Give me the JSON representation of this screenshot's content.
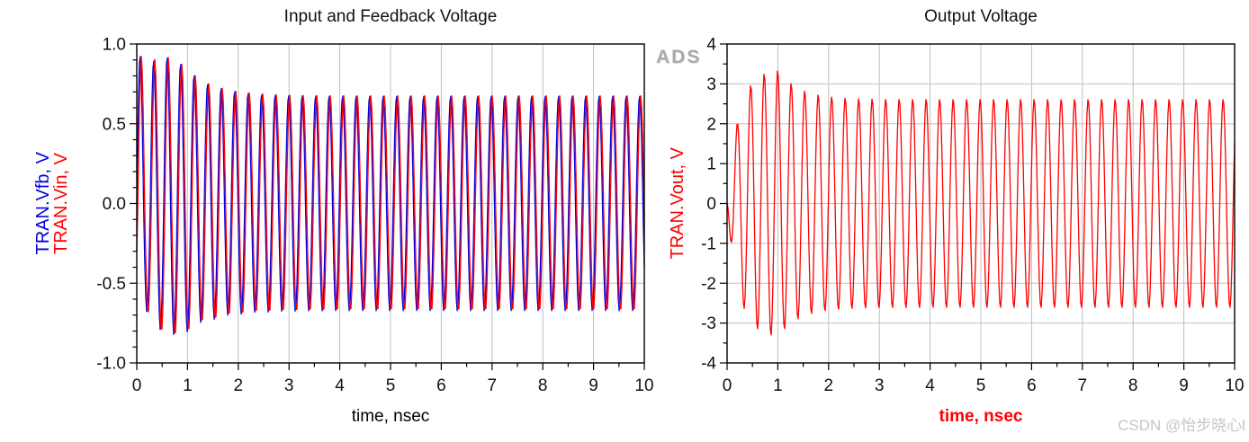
{
  "watermarks": {
    "ads": "ADS",
    "csdn": "CSDN @怡步晓心l"
  },
  "chart_data": [
    {
      "type": "line",
      "title": "Input and Feedback Voltage",
      "xlabel": "time, nsec",
      "xlabel_color": "#000000",
      "ylabels": [
        {
          "text": "TRAN.Vfb, V",
          "color": "#0000e0"
        },
        {
          "text": "TRAN.Vin, V",
          "color": "#ff0000"
        }
      ],
      "xlim": [
        0,
        10
      ],
      "ylim": [
        -1,
        1
      ],
      "xticks": [
        0,
        1,
        2,
        3,
        4,
        5,
        6,
        7,
        8,
        9,
        10
      ],
      "xtick_labels": [
        "0",
        "1",
        "2",
        "3",
        "4",
        "5",
        "6",
        "7",
        "8",
        "9",
        "10"
      ],
      "yticks": [
        -1,
        -0.5,
        0,
        0.5,
        1
      ],
      "ytick_labels": [
        "-1.0",
        "-0.5",
        "0.0",
        "0.5",
        "1.0"
      ],
      "x_minor_step": 0.5,
      "y_minor_step": 0.1,
      "grid": true,
      "grid_color": "#c0c0c0",
      "description": "Two nearly overlapping decaying startup sinusoids; amplitude ~0.9 V settling to ~0.67 V after ~2.5 ns, ~3.76 cycles per ns",
      "series": [
        {
          "name": "TRAN.Vfb",
          "color": "#0000e0",
          "signal": {
            "freq_ghz": 3.76,
            "delay": 0,
            "base": 0.675,
            "overshoot": 0.235,
            "decay_start": 0.8,
            "decay_tau": 0.55,
            "wobble": {
              "amp": 0.03,
              "period": 0.52,
              "decay": 1.0
            },
            "neg_suppress": {
              "coef": 0.35,
              "tau": 0.5
            }
          }
        },
        {
          "name": "TRAN.Vin",
          "color": "#ff0000",
          "signal": {
            "freq_ghz": 3.76,
            "delay": 0.022,
            "base": 0.675,
            "overshoot": 0.235,
            "decay_start": 0.8,
            "decay_tau": 0.55,
            "wobble": {
              "amp": 0.03,
              "period": 0.52,
              "decay": 1.0
            },
            "neg_suppress": {
              "coef": 0.35,
              "tau": 0.5
            }
          }
        }
      ]
    },
    {
      "type": "line",
      "title": "Output Voltage",
      "xlabel": "time, nsec",
      "xlabel_color": "#ff0000",
      "ylabels": [
        {
          "text": "TRAN.Vout, V",
          "color": "#ff0000"
        }
      ],
      "xlim": [
        0,
        10
      ],
      "ylim": [
        -4,
        4
      ],
      "xticks": [
        0,
        1,
        2,
        3,
        4,
        5,
        6,
        7,
        8,
        9,
        10
      ],
      "xtick_labels": [
        "0",
        "1",
        "2",
        "3",
        "4",
        "5",
        "6",
        "7",
        "8",
        "9",
        "10"
      ],
      "yticks": [
        -4,
        -3,
        -2,
        -1,
        0,
        1,
        2,
        3,
        4
      ],
      "ytick_labels": [
        "-4",
        "-3",
        "-2",
        "-1",
        "0",
        "1",
        "2",
        "3",
        "4"
      ],
      "x_minor_step": 0.5,
      "y_minor_step": 0.5,
      "grid": true,
      "grid_color": "#c0c0c0",
      "description": "Oscillator output: grows from 0 to ~3.3 V overshoot near t=1 ns, settles to ~2.6 V amplitude, ~3.76 cycles per ns, inverted phase",
      "series": [
        {
          "name": "TRAN.Vout",
          "color": "#ff0000",
          "signal": {
            "freq_ghz": 3.76,
            "delay": 0,
            "invert": true,
            "base": 2.62,
            "overshoot": 0.76,
            "decay_start": 1.0,
            "decay_tau": 0.42,
            "rise_tau": 0.22
          }
        }
      ]
    }
  ]
}
